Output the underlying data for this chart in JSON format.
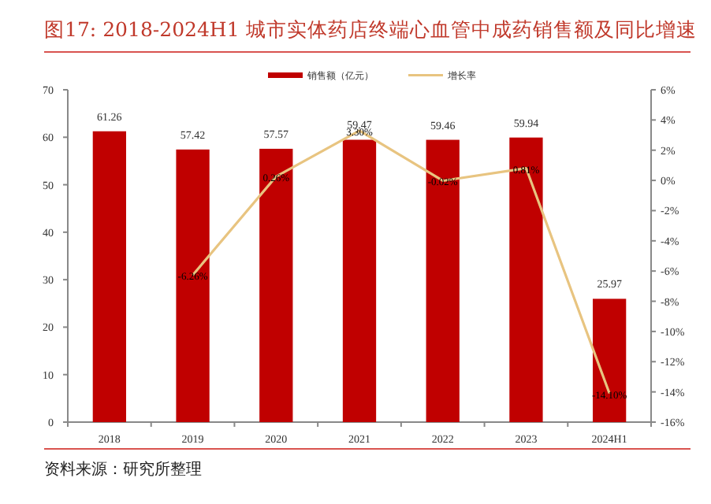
{
  "chart_data": {
    "type": "bar",
    "title": "图17:  2018-2024H1 城市实体药店终端心血管中成药销售额及同比增速",
    "categories": [
      "2018",
      "2019",
      "2020",
      "2021",
      "2022",
      "2023",
      "2024H1"
    ],
    "series": [
      {
        "name": "销售额（亿元）",
        "color": "#c00000",
        "values": [
          61.26,
          57.42,
          57.57,
          59.47,
          59.46,
          59.94,
          25.97
        ]
      },
      {
        "name": "增长率",
        "type": "line",
        "axis": "y2",
        "color": "#e8c480",
        "values": [
          null,
          -6.26,
          0.26,
          3.3,
          -0.02,
          0.81,
          -14.1
        ],
        "value_labels": [
          null,
          "-6.26%",
          "0.26%",
          "3.30%",
          "-0.02%",
          "0.81%",
          "-14.10%"
        ]
      }
    ],
    "ylim": [
      0,
      70
    ],
    "yticks": [
      0,
      10,
      20,
      30,
      40,
      50,
      60,
      70
    ],
    "y2lim": [
      -16,
      6
    ],
    "y2ticks": [
      {
        "value": -16,
        "label": "-16%"
      },
      {
        "value": -14,
        "label": "-14%"
      },
      {
        "value": -12,
        "label": "-12%"
      },
      {
        "value": -10,
        "label": "-10%"
      },
      {
        "value": -8,
        "label": "-8%"
      },
      {
        "value": -6,
        "label": "-6%"
      },
      {
        "value": -4,
        "label": "-4%"
      },
      {
        "value": -2,
        "label": "-2%"
      },
      {
        "value": 0,
        "label": "0%"
      },
      {
        "value": 2,
        "label": "2%"
      },
      {
        "value": 4,
        "label": "4%"
      },
      {
        "value": 6,
        "label": "6%"
      }
    ],
    "data_labels": true,
    "legend": "top",
    "grid": false,
    "annotations": [
      "资料来源：研究所整理"
    ]
  }
}
